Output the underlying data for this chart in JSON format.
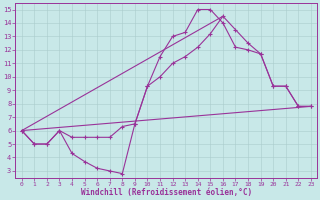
{
  "xlabel": "Windchill (Refroidissement éolien,°C)",
  "background_color": "#c8e8e8",
  "line_color": "#993399",
  "grid_color": "#aacccc",
  "xlim": [
    -0.5,
    23.5
  ],
  "ylim": [
    2.5,
    15.5
  ],
  "xticks": [
    0,
    1,
    2,
    3,
    4,
    5,
    6,
    7,
    8,
    9,
    10,
    11,
    12,
    13,
    14,
    15,
    16,
    17,
    18,
    19,
    20,
    21,
    22,
    23
  ],
  "yticks": [
    3,
    4,
    5,
    6,
    7,
    8,
    9,
    10,
    11,
    12,
    13,
    14,
    15
  ],
  "series_steep_x": [
    0,
    1,
    2,
    3,
    4,
    5,
    6,
    7,
    8,
    9,
    10,
    11,
    12,
    13,
    14,
    15,
    16,
    17,
    18,
    19,
    20,
    21,
    22,
    23
  ],
  "series_steep_y": [
    6.0,
    5.0,
    5.0,
    6.0,
    4.3,
    3.7,
    3.2,
    3.0,
    2.8,
    6.5,
    9.3,
    11.5,
    13.0,
    13.3,
    15.0,
    15.0,
    14.0,
    12.2,
    12.0,
    11.7,
    9.3,
    9.3,
    7.8,
    7.8
  ],
  "series_smooth_x": [
    0,
    1,
    2,
    3,
    4,
    5,
    6,
    7,
    8,
    9,
    10,
    11,
    12,
    13,
    14,
    15,
    16,
    17,
    18,
    19,
    20,
    21,
    22,
    23
  ],
  "series_smooth_y": [
    6.0,
    5.0,
    5.0,
    6.0,
    5.5,
    5.5,
    5.5,
    5.5,
    6.3,
    6.5,
    9.3,
    10.0,
    11.0,
    11.5,
    12.2,
    13.2,
    14.5,
    13.5,
    12.5,
    11.7,
    9.3,
    9.3,
    7.8,
    7.8
  ],
  "line1_x": [
    0,
    23
  ],
  "line1_y": [
    6.0,
    7.8
  ],
  "line2_x": [
    0,
    16
  ],
  "line2_y": [
    6.0,
    14.5
  ]
}
